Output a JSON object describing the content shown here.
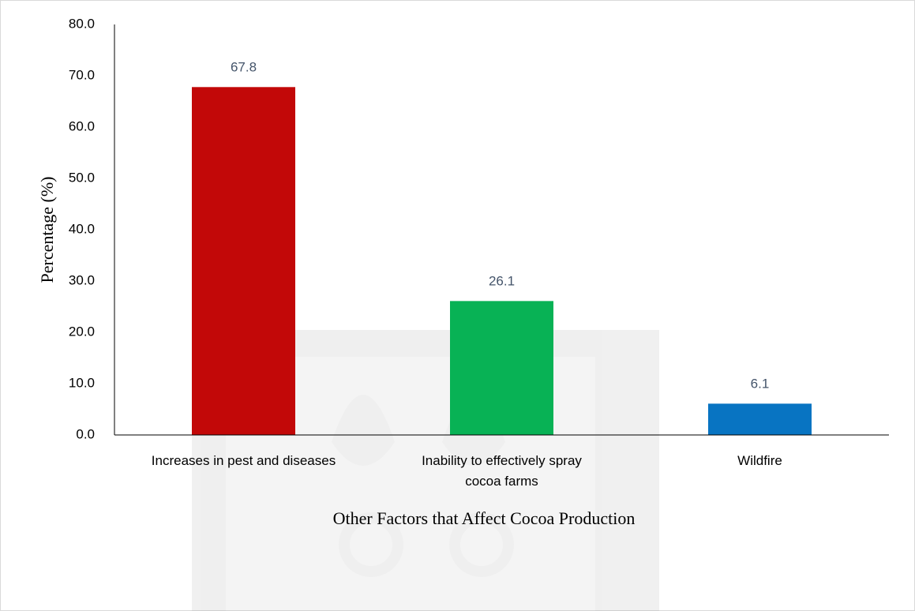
{
  "chart_data": {
    "type": "bar",
    "title": "",
    "xlabel": "Other Factors that Affect Cocoa Production",
    "ylabel": "Percentage (%)",
    "ylim": [
      0,
      80
    ],
    "y_ticks": [
      "0.0",
      "10.0",
      "20.0",
      "30.0",
      "40.0",
      "50.0",
      "60.0",
      "70.0",
      "80.0"
    ],
    "grid": false,
    "legend": "none",
    "categories": [
      [
        "Increases in pest and diseases"
      ],
      [
        "Inability to effectively spray",
        "cocoa farms"
      ],
      [
        "Wildfire"
      ]
    ],
    "values": [
      67.8,
      26.1,
      6.1
    ],
    "data_labels": [
      "67.8",
      "26.1",
      "6.1"
    ],
    "colors": [
      "#c00000",
      "#00b050",
      "#0070c0"
    ]
  }
}
